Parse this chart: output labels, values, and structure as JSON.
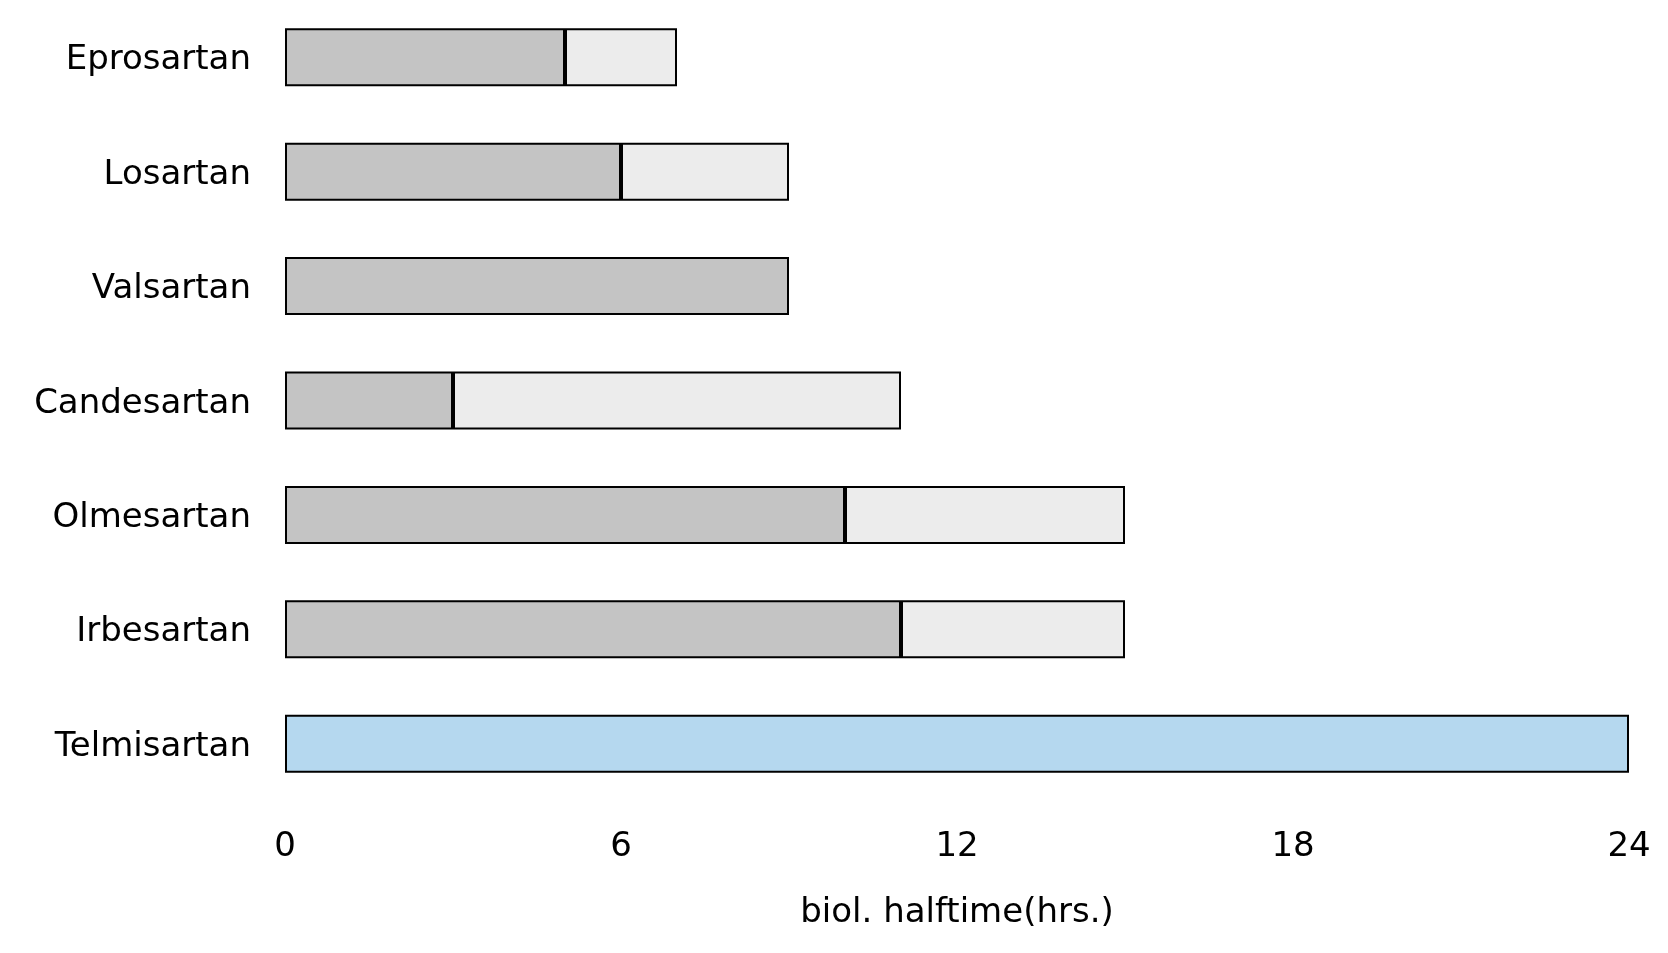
{
  "chart_data": {
    "type": "bar",
    "orientation": "horizontal",
    "stacked": true,
    "xlabel": "biol. halftime(hrs.)",
    "categories": [
      "Eprosartan",
      "Losartan",
      "Valsartan",
      "Candesartan",
      "Olmesartan",
      "Irbesartan",
      "Telmisartan"
    ],
    "series": [
      {
        "colors": [
          "#c4c4c4",
          "#c4c4c4",
          "#c4c4c4",
          "#c4c4c4",
          "#c4c4c4",
          "#c4c4c4",
          "#b5d8ef"
        ],
        "values": [
          5,
          6,
          9,
          3,
          10,
          11,
          24
        ]
      },
      {
        "color": "#ececec",
        "values": [
          2,
          3,
          null,
          8,
          5,
          4,
          null
        ]
      }
    ],
    "xlim": [
      0,
      24
    ],
    "xticks": [
      0,
      6,
      12,
      18,
      24
    ],
    "grid": false
  }
}
